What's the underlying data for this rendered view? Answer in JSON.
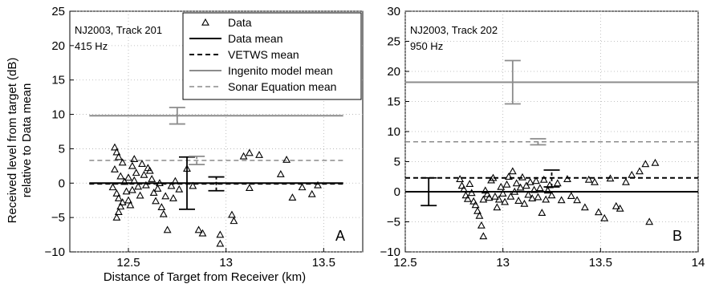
{
  "chart_data": [
    {
      "type": "scatter",
      "panel": "A",
      "annotation_lines": [
        "NJ2003, Track 201",
        "415 Hz"
      ],
      "xlabel": "Distance of Target from Receiver (km)",
      "ylabel_lines": [
        "Received level from target (dB)",
        "relative to Data mean"
      ],
      "xlim": [
        12.2,
        13.7
      ],
      "ylim": [
        -10,
        25
      ],
      "xticks": [
        12.5,
        13,
        13.5
      ],
      "xtick_labels": [
        "12.5",
        "13",
        "13.5"
      ],
      "yticks": [
        -10,
        -5,
        0,
        5,
        10,
        15,
        20,
        25
      ],
      "ytick_labels": [
        "−10",
        "−5",
        "0",
        "5",
        "10",
        "15",
        "20",
        "25"
      ],
      "grid": "dotted",
      "legend": {
        "placement": "top-right",
        "entries": [
          {
            "label": "Data",
            "style": "triangle"
          },
          {
            "label": "Data mean",
            "style": "solid-black"
          },
          {
            "label": "VETWS mean",
            "style": "dashed-black"
          },
          {
            "label": "Ingenito model mean",
            "style": "solid-gray"
          },
          {
            "label": "Sonar Equation mean",
            "style": "dashed-gray"
          }
        ]
      },
      "mean_lines": [
        {
          "name": "Data mean",
          "y": 0,
          "x_range": [
            12.3,
            13.6
          ],
          "style": "solid-black"
        },
        {
          "name": "VETWS mean",
          "y": -0.1,
          "x_range": [
            12.3,
            13.6
          ],
          "style": "dashed-black"
        },
        {
          "name": "Ingenito model mean",
          "y": 9.8,
          "x_range": [
            12.3,
            13.6
          ],
          "style": "solid-gray"
        },
        {
          "name": "Sonar Equation mean",
          "y": 3.3,
          "x_range": [
            12.3,
            13.6
          ],
          "style": "dashed-gray"
        }
      ],
      "error_bars": [
        {
          "x": 12.8,
          "low": -3.8,
          "high": 3.8,
          "style": "solid-black"
        },
        {
          "x": 12.95,
          "low": -1.1,
          "high": 0.9,
          "style": "dashed-black"
        },
        {
          "x": 12.75,
          "low": 8.6,
          "high": 11.0,
          "style": "solid-gray"
        },
        {
          "x": 12.85,
          "low": 2.7,
          "high": 3.9,
          "style": "dashed-gray"
        }
      ],
      "points": [
        [
          12.43,
          5.2
        ],
        [
          12.44,
          4.5
        ],
        [
          12.45,
          3.8
        ],
        [
          12.47,
          3.0
        ],
        [
          12.43,
          2.0
        ],
        [
          12.46,
          1.0
        ],
        [
          12.48,
          0.2
        ],
        [
          12.42,
          -0.6
        ],
        [
          12.44,
          -1.5
        ],
        [
          12.45,
          -2.2
        ],
        [
          12.47,
          -2.8
        ],
        [
          12.46,
          -3.4
        ],
        [
          12.45,
          -4.2
        ],
        [
          12.44,
          -5.0
        ],
        [
          12.49,
          -1.2
        ],
        [
          12.5,
          -2.5
        ],
        [
          12.5,
          0.8
        ],
        [
          12.51,
          -3.2
        ],
        [
          12.52,
          2.5
        ],
        [
          12.53,
          3.5
        ],
        [
          12.54,
          1.5
        ],
        [
          12.53,
          0.4
        ],
        [
          12.55,
          -0.5
        ],
        [
          12.56,
          -1.8
        ],
        [
          12.52,
          -1.0
        ],
        [
          12.57,
          2.8
        ],
        [
          12.58,
          1.2
        ],
        [
          12.59,
          -0.3
        ],
        [
          12.6,
          2.2
        ],
        [
          12.61,
          1.8
        ],
        [
          12.62,
          0.6
        ],
        [
          12.63,
          -1.4
        ],
        [
          12.64,
          -2.6
        ],
        [
          12.65,
          -0.8
        ],
        [
          12.66,
          0.0
        ],
        [
          12.67,
          -3.5
        ],
        [
          12.68,
          -4.5
        ],
        [
          12.69,
          -1.9
        ],
        [
          12.7,
          -6.8
        ],
        [
          12.72,
          -0.4
        ],
        [
          12.74,
          0.3
        ],
        [
          12.73,
          -2.2
        ],
        [
          12.76,
          -0.9
        ],
        [
          12.8,
          2.1
        ],
        [
          12.83,
          -0.4
        ],
        [
          12.86,
          -6.8
        ],
        [
          12.88,
          -7.3
        ],
        [
          12.97,
          -7.5
        ],
        [
          12.97,
          -8.8
        ],
        [
          13.03,
          -4.6
        ],
        [
          13.04,
          -5.5
        ],
        [
          13.09,
          3.9
        ],
        [
          13.12,
          4.4
        ],
        [
          13.17,
          4.1
        ],
        [
          13.12,
          -0.7
        ],
        [
          13.28,
          1.3
        ],
        [
          13.31,
          3.4
        ],
        [
          13.34,
          -2.1
        ],
        [
          13.39,
          -0.6
        ],
        [
          13.44,
          -1.6
        ],
        [
          13.47,
          -0.3
        ]
      ]
    },
    {
      "type": "scatter",
      "panel": "B",
      "annotation_lines": [
        "NJ2003, Track 202",
        "950 Hz"
      ],
      "xlim": [
        12.5,
        14
      ],
      "ylim": [
        -10,
        30
      ],
      "xticks": [
        12.5,
        13,
        13.5,
        14
      ],
      "xtick_labels": [
        "12.5",
        "13",
        "13.5",
        "14"
      ],
      "yticks": [
        -10,
        -5,
        0,
        5,
        10,
        15,
        20,
        25,
        30
      ],
      "ytick_labels": [
        "−10",
        "−5",
        "0",
        "5",
        "10",
        "15",
        "20",
        "25",
        "30"
      ],
      "grid": "dotted",
      "mean_lines": [
        {
          "name": "Data mean",
          "y": 0,
          "x_range": [
            12.5,
            14
          ],
          "style": "solid-black"
        },
        {
          "name": "VETWS mean",
          "y": 2.3,
          "x_range": [
            12.5,
            14
          ],
          "style": "dashed-black"
        },
        {
          "name": "Ingenito model mean",
          "y": 18.2,
          "x_range": [
            12.5,
            14
          ],
          "style": "solid-gray"
        },
        {
          "name": "Sonar Equation mean",
          "y": 8.3,
          "x_range": [
            12.5,
            14
          ],
          "style": "dashed-gray"
        }
      ],
      "error_bars": [
        {
          "x": 12.62,
          "low": -2.3,
          "high": 2.3,
          "style": "solid-black"
        },
        {
          "x": 13.25,
          "low": 0.8,
          "high": 3.6,
          "style": "dashed-black"
        },
        {
          "x": 13.05,
          "low": 14.6,
          "high": 21.8,
          "style": "solid-gray"
        },
        {
          "x": 13.18,
          "low": 7.8,
          "high": 8.8,
          "style": "dashed-gray"
        }
      ],
      "points": [
        [
          12.78,
          2.1
        ],
        [
          12.79,
          1.0
        ],
        [
          12.8,
          0.4
        ],
        [
          12.81,
          -0.6
        ],
        [
          12.82,
          -1.2
        ],
        [
          12.83,
          1.3
        ],
        [
          12.84,
          -0.2
        ],
        [
          12.85,
          -1.6
        ],
        [
          12.86,
          -2.2
        ],
        [
          12.87,
          -3.2
        ],
        [
          12.88,
          -4.0
        ],
        [
          12.89,
          -5.6
        ],
        [
          12.9,
          -7.4
        ],
        [
          12.9,
          -1.3
        ],
        [
          12.91,
          0.2
        ],
        [
          12.92,
          -0.4
        ],
        [
          12.93,
          -1.0
        ],
        [
          12.94,
          1.9
        ],
        [
          12.95,
          2.3
        ],
        [
          12.96,
          -0.8
        ],
        [
          12.97,
          -2.6
        ],
        [
          12.98,
          -1.3
        ],
        [
          12.99,
          0.8
        ],
        [
          13.0,
          -0.3
        ],
        [
          13.01,
          -1.7
        ],
        [
          13.02,
          1.2
        ],
        [
          13.03,
          2.5
        ],
        [
          13.04,
          -0.8
        ],
        [
          13.05,
          3.4
        ],
        [
          13.06,
          0.0
        ],
        [
          13.07,
          1.4
        ],
        [
          13.08,
          -1.5
        ],
        [
          13.09,
          0.7
        ],
        [
          13.1,
          2.4
        ],
        [
          13.11,
          -2.0
        ],
        [
          13.12,
          1.0
        ],
        [
          13.13,
          -0.5
        ],
        [
          13.14,
          1.6
        ],
        [
          13.15,
          -1.1
        ],
        [
          13.16,
          0.3
        ],
        [
          13.17,
          1.8
        ],
        [
          13.18,
          -0.9
        ],
        [
          13.19,
          0.6
        ],
        [
          13.2,
          -3.5
        ],
        [
          13.21,
          2.0
        ],
        [
          13.22,
          -1.3
        ],
        [
          13.23,
          0.2
        ],
        [
          13.24,
          1.1
        ],
        [
          13.25,
          -0.6
        ],
        [
          13.28,
          1.4
        ],
        [
          13.3,
          -1.4
        ],
        [
          13.33,
          2.1
        ],
        [
          13.35,
          -0.7
        ],
        [
          13.38,
          -1.4
        ],
        [
          13.42,
          -2.6
        ],
        [
          13.44,
          2.0
        ],
        [
          13.47,
          1.6
        ],
        [
          13.49,
          -3.4
        ],
        [
          13.52,
          -4.4
        ],
        [
          13.55,
          2.2
        ],
        [
          13.58,
          -2.4
        ],
        [
          13.6,
          -2.8
        ],
        [
          13.63,
          1.6
        ],
        [
          13.66,
          2.8
        ],
        [
          13.7,
          3.4
        ],
        [
          13.73,
          4.6
        ],
        [
          13.75,
          -5.0
        ],
        [
          13.78,
          4.8
        ]
      ]
    }
  ],
  "panel_letters": [
    "A",
    "B"
  ]
}
